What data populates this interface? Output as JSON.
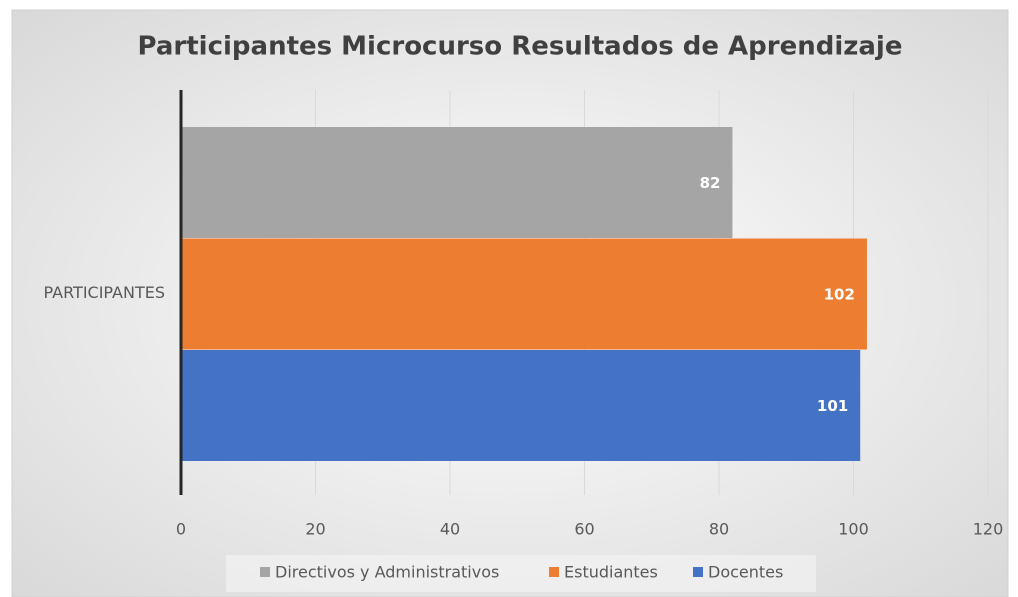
{
  "chart_data": {
    "type": "bar",
    "orientation": "horizontal",
    "title": "Participantes Microcurso Resultados de Aprendizaje",
    "categories": [
      "PARTICIPANTES"
    ],
    "series": [
      {
        "name": "Directivos y Administrativos",
        "color": "#a5a5a5",
        "values": [
          82
        ]
      },
      {
        "name": "Estudiantes",
        "color": "#ed7d31",
        "values": [
          102
        ]
      },
      {
        "name": "Docentes",
        "color": "#4472c4",
        "values": [
          101
        ]
      }
    ],
    "xlim": [
      0,
      120
    ],
    "xticks": [
      0,
      20,
      40,
      60,
      80,
      100,
      120
    ],
    "grid": true,
    "legend": "bottom"
  }
}
